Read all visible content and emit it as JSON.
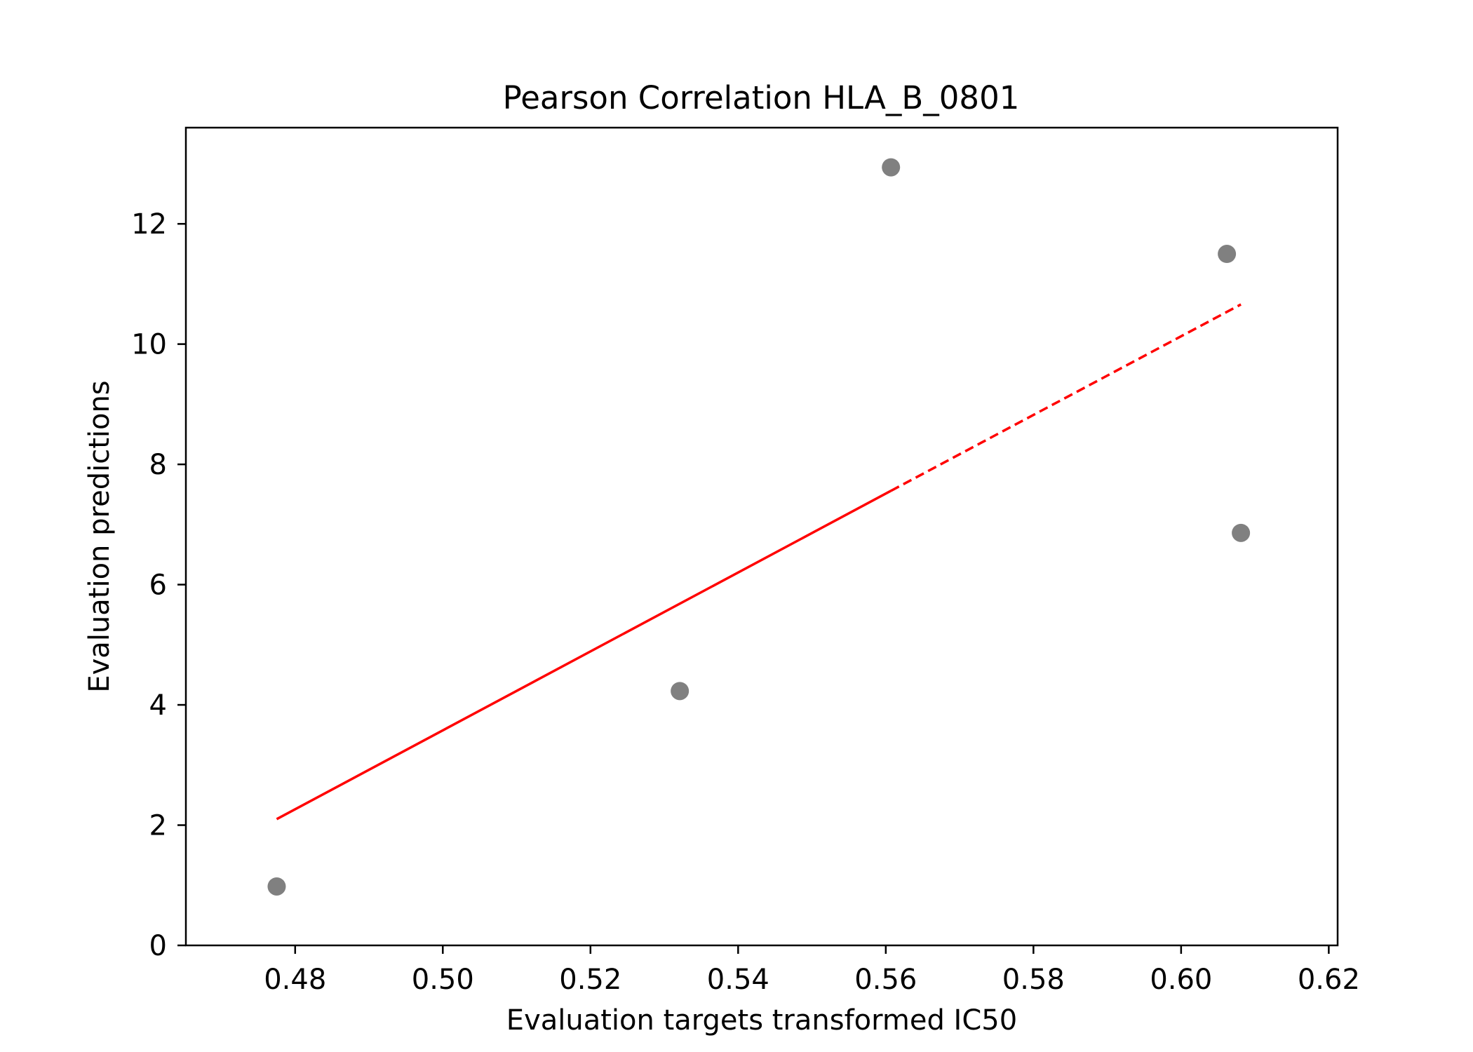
{
  "chart_data": {
    "type": "scatter",
    "title": "Pearson Correlation HLA_B_0801",
    "xlabel": "Evaluation targets transformed IC50",
    "ylabel": "Evaluation predictions",
    "xlim": [
      0.4652,
      0.6212
    ],
    "ylim": [
      0,
      13.6
    ],
    "xticks": [
      0.48,
      0.5,
      0.52,
      0.54,
      0.56,
      0.58,
      0.6,
      0.62
    ],
    "xtick_labels": [
      "0.48",
      "0.50",
      "0.52",
      "0.54",
      "0.56",
      "0.58",
      "0.60",
      "0.62"
    ],
    "yticks": [
      0,
      2,
      4,
      6,
      8,
      10,
      12
    ],
    "ytick_labels": [
      "0",
      "2",
      "4",
      "6",
      "8",
      "10",
      "12"
    ],
    "grid": false,
    "series": [
      {
        "kind": "scatter",
        "color": "#808080",
        "points": [
          {
            "x": 0.4775,
            "y": 0.98
          },
          {
            "x": 0.5321,
            "y": 4.23
          },
          {
            "x": 0.5607,
            "y": 12.94
          },
          {
            "x": 0.6062,
            "y": 11.5
          },
          {
            "x": 0.6081,
            "y": 6.86
          }
        ]
      },
      {
        "kind": "line",
        "color": "#ff0000",
        "segments": [
          {
            "style": "solid",
            "from": {
              "x": 0.4775,
              "y": 2.1
            },
            "to": {
              "x": 0.5607,
              "y": 7.56
            }
          },
          {
            "style": "dashed",
            "from": {
              "x": 0.5607,
              "y": 7.56
            },
            "to": {
              "x": 0.6081,
              "y": 10.66
            }
          }
        ]
      }
    ]
  }
}
